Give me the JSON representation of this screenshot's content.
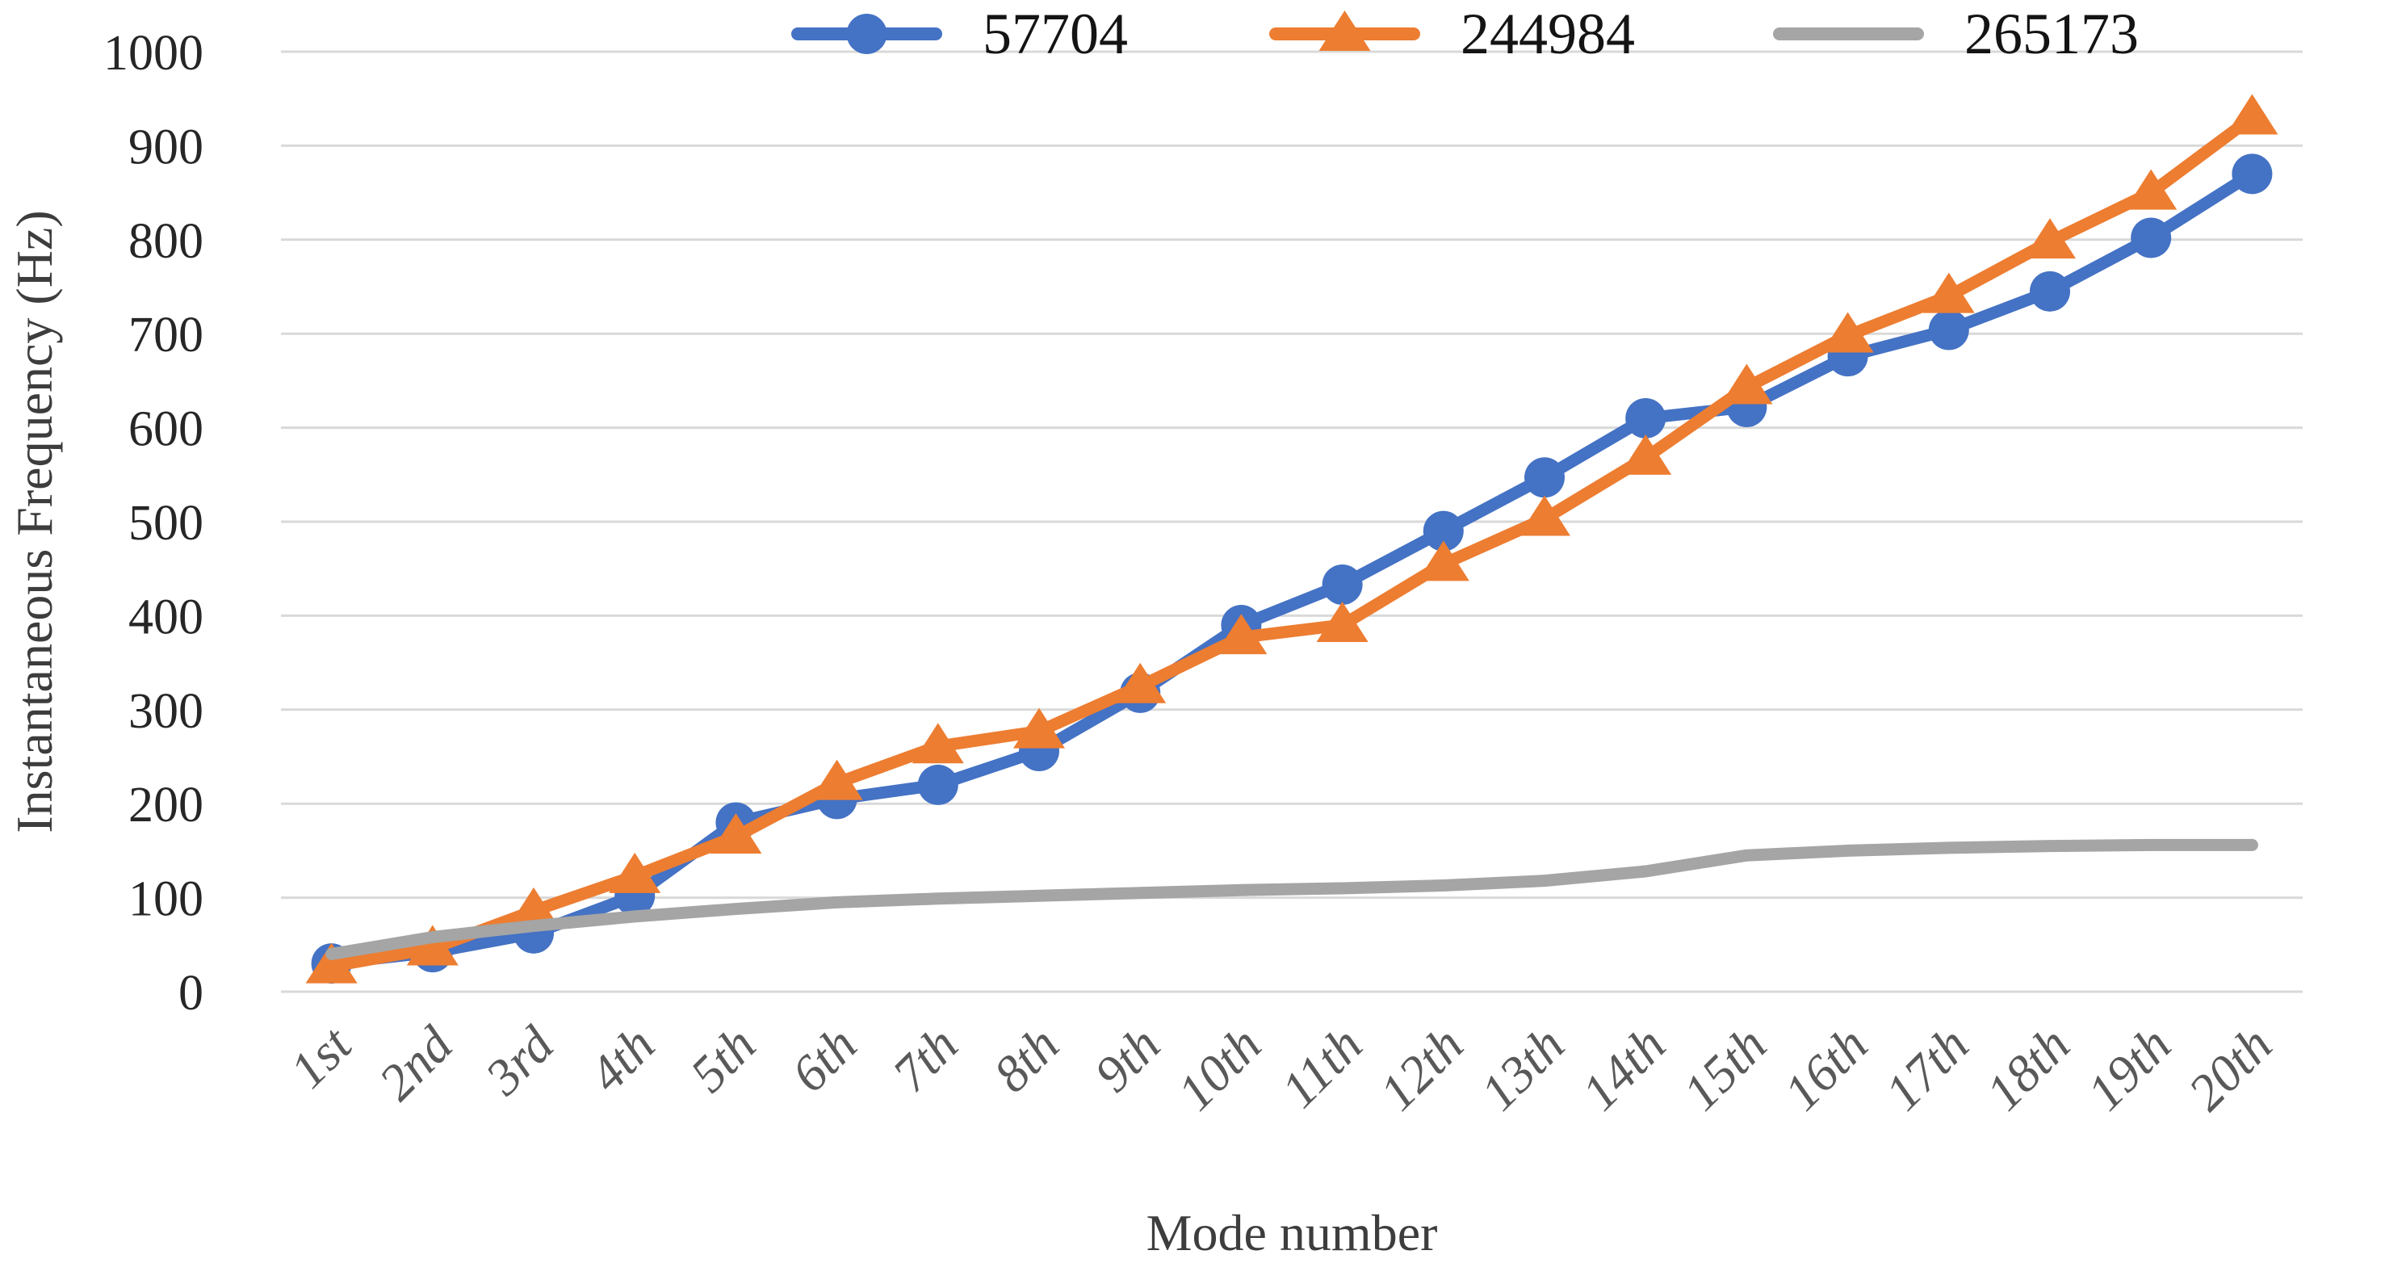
{
  "chart_data": {
    "type": "line",
    "title": "",
    "xlabel": "Mode number",
    "ylabel": "Instantaneous Frequency (Hz)",
    "categories": [
      "1st",
      "2nd",
      "3rd",
      "4th",
      "5th",
      "6th",
      "7th",
      "8th",
      "9th",
      "10th",
      "11th",
      "12th",
      "13th",
      "14th",
      "15th",
      "16th",
      "17th",
      "18th",
      "19th",
      "20th"
    ],
    "y_ticks": [
      0,
      100,
      200,
      300,
      400,
      500,
      600,
      700,
      800,
      900,
      1000
    ],
    "ylim": [
      0,
      1000
    ],
    "grid": true,
    "legend_position": "top",
    "series": [
      {
        "name": "57704",
        "color": "#4472C4",
        "marker": "circle",
        "values": [
          30,
          42,
          62,
          102,
          180,
          205,
          220,
          256,
          318,
          390,
          433,
          490,
          547,
          610,
          622,
          676,
          704,
          745,
          802,
          870
        ]
      },
      {
        "name": "244984",
        "color": "#ED7D31",
        "marker": "triangle",
        "values": [
          27,
          46,
          86,
          123,
          165,
          222,
          261,
          277,
          325,
          377,
          390,
          455,
          503,
          568,
          643,
          698,
          740,
          798,
          850,
          930
        ]
      },
      {
        "name": "265173",
        "color": "#A5A5A5",
        "marker": "none",
        "values": [
          40,
          58,
          70,
          80,
          88,
          95,
          99,
          102,
          105,
          108,
          110,
          113,
          118,
          128,
          145,
          150,
          153,
          155,
          156,
          156
        ]
      }
    ]
  },
  "colors": {
    "gridline": "#D9D9D9",
    "y_tick_label": "#262626",
    "x_tick_label": "#595959",
    "axis_title": "#3d3d3d",
    "legend_text": "#141414"
  }
}
